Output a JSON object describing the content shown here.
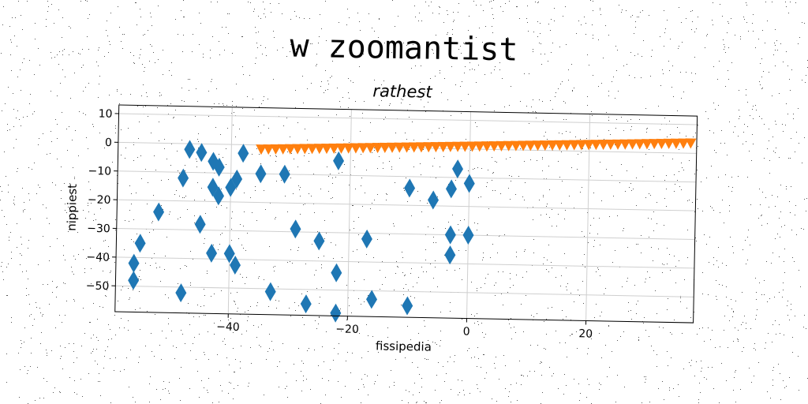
{
  "title": "w zoomantist",
  "chart_data": {
    "type": "scatter",
    "subtitle": "rathest",
    "xlabel": "fissipedia",
    "ylabel": "nippiest",
    "xlim": [
      -59,
      38
    ],
    "ylim": [
      -59,
      13
    ],
    "grid": true,
    "xticks": [
      -40,
      -20,
      0,
      20
    ],
    "yticks": [
      10,
      0,
      -10,
      -20,
      -30,
      -40,
      -50
    ],
    "series": [
      {
        "marker": "diamond",
        "color": "#1f77b4",
        "points": [
          [
            -47,
            -2
          ],
          [
            -45,
            -3
          ],
          [
            -43,
            -6
          ],
          [
            -42,
            -8
          ],
          [
            -48,
            -12
          ],
          [
            -38,
            -3
          ],
          [
            -35,
            -10
          ],
          [
            -31,
            -10
          ],
          [
            -43,
            -15
          ],
          [
            -42,
            -18
          ],
          [
            -40,
            -15
          ],
          [
            -39,
            -12
          ],
          [
            -52,
            -24
          ],
          [
            -45,
            -28
          ],
          [
            -55,
            -35
          ],
          [
            -56,
            -42
          ],
          [
            -56,
            -48
          ],
          [
            -48,
            -52
          ],
          [
            -43,
            -38
          ],
          [
            -40,
            -38
          ],
          [
            -39,
            -42
          ],
          [
            -33,
            -51
          ],
          [
            -29,
            -29
          ],
          [
            -27,
            -55
          ],
          [
            -25,
            -33
          ],
          [
            -22,
            -5
          ],
          [
            -22,
            -44
          ],
          [
            -22,
            -58
          ],
          [
            -17,
            -32
          ],
          [
            -16,
            -53
          ],
          [
            -10,
            -14
          ],
          [
            -10,
            -55
          ],
          [
            -6,
            -18
          ],
          [
            -2,
            -7
          ],
          [
            -3,
            -14
          ],
          [
            0,
            -12
          ],
          [
            -3,
            -30
          ],
          [
            0,
            -30
          ],
          [
            -3,
            -37
          ]
        ]
      },
      {
        "marker": "triangle-down",
        "color": "#ff7f0e",
        "x_start": -35,
        "x_end": 37,
        "y_start": -1.5,
        "y_end": 3.5,
        "count": 60
      }
    ]
  }
}
